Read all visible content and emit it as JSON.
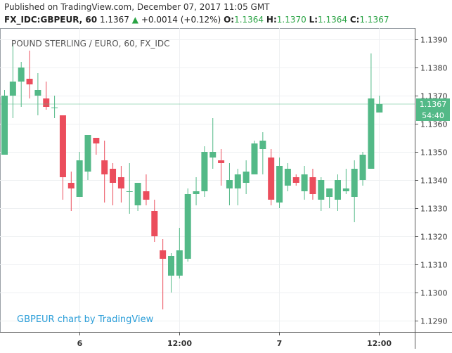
{
  "header": {
    "published": "Published on TradingView.com, December 07, 2017 11:05 GMT",
    "symbol": "FX_IDC:GBPEUR, 60",
    "last": "1.1367",
    "change": "+0.0014 (+0.12%)",
    "o_label": "O:",
    "o_value": "1.1364",
    "h_label": "H:",
    "h_value": "1.1370",
    "l_label": "L:",
    "l_value": "1.1364",
    "c_label": "C:",
    "c_value": "1.1367",
    "change_icon": "triangle-up-icon"
  },
  "chart_data": {
    "type": "candlestick",
    "title": "POUND STERLING / EURO, 60, FX_IDC",
    "watermark": "GBPEUR chart by TradingView",
    "y_ticks": [
      "1.1390",
      "1.1380",
      "1.1370",
      "1.1360",
      "1.1350",
      "1.1340",
      "1.1330",
      "1.1320",
      "1.1310",
      "1.1300",
      "1.1290"
    ],
    "x_ticks": [
      "6",
      "12:00",
      "7",
      "12:00"
    ],
    "ylim": [
      1.1286,
      1.1394
    ],
    "price_label": "1.1367",
    "countdown_label": "54:40",
    "up_color": "#53b987",
    "down_color": "#eb4d5c",
    "candles": [
      {
        "o": 1.1349,
        "h": 1.1372,
        "l": 1.1349,
        "c": 1.137
      },
      {
        "o": 1.137,
        "h": 1.13885,
        "l": 1.1362,
        "c": 1.1375
      },
      {
        "o": 1.1375,
        "h": 1.1382,
        "l": 1.1366,
        "c": 1.138
      },
      {
        "o": 1.1376,
        "h": 1.1386,
        "l": 1.1369,
        "c": 1.1374
      },
      {
        "o": 1.137,
        "h": 1.1378,
        "l": 1.1363,
        "c": 1.1372
      },
      {
        "o": 1.1369,
        "h": 1.1375,
        "l": 1.1365,
        "c": 1.1366
      },
      {
        "o": 1.13658,
        "h": 1.137,
        "l": 1.1362,
        "c": 1.13658
      },
      {
        "o": 1.1363,
        "h": 1.1363,
        "l": 1.1333,
        "c": 1.1341
      },
      {
        "o": 1.1339,
        "h": 1.1343,
        "l": 1.1329,
        "c": 1.1337
      },
      {
        "o": 1.1334,
        "h": 1.135,
        "l": 1.1334,
        "c": 1.1347
      },
      {
        "o": 1.1343,
        "h": 1.1356,
        "l": 1.134,
        "c": 1.1356
      },
      {
        "o": 1.1355,
        "h": 1.1355,
        "l": 1.1349,
        "c": 1.1353
      },
      {
        "o": 1.1347,
        "h": 1.1354,
        "l": 1.1332,
        "c": 1.1342
      },
      {
        "o": 1.1344,
        "h": 1.1346,
        "l": 1.1331,
        "c": 1.1339
      },
      {
        "o": 1.1341,
        "h": 1.1345,
        "l": 1.1332,
        "c": 1.1337
      },
      {
        "o": 1.1336,
        "h": 1.1346,
        "l": 1.1328,
        "c": 1.1336
      },
      {
        "o": 1.1331,
        "h": 1.1338,
        "l": 1.1329,
        "c": 1.1339
      },
      {
        "o": 1.1336,
        "h": 1.1342,
        "l": 1.1331,
        "c": 1.1333
      },
      {
        "o": 1.1329,
        "h": 1.1333,
        "l": 1.1318,
        "c": 1.132
      },
      {
        "o": 1.1315,
        "h": 1.1319,
        "l": 1.1294,
        "c": 1.1312
      },
      {
        "o": 1.1306,
        "h": 1.1314,
        "l": 1.13,
        "c": 1.1313
      },
      {
        "o": 1.1306,
        "h": 1.1323,
        "l": 1.1305,
        "c": 1.1315
      },
      {
        "o": 1.1312,
        "h": 1.1337,
        "l": 1.1311,
        "c": 1.1335
      },
      {
        "o": 1.1335,
        "h": 1.1341,
        "l": 1.1331,
        "c": 1.1336
      },
      {
        "o": 1.1336,
        "h": 1.1352,
        "l": 1.1334,
        "c": 1.135
      },
      {
        "o": 1.1348,
        "h": 1.1362,
        "l": 1.1344,
        "c": 1.135
      },
      {
        "o": 1.1347,
        "h": 1.1351,
        "l": 1.1338,
        "c": 1.1346
      },
      {
        "o": 1.1337,
        "h": 1.1346,
        "l": 1.1331,
        "c": 1.134
      },
      {
        "o": 1.1337,
        "h": 1.1344,
        "l": 1.1331,
        "c": 1.1342
      },
      {
        "o": 1.1339,
        "h": 1.1347,
        "l": 1.1335,
        "c": 1.1343
      },
      {
        "o": 1.1342,
        "h": 1.1354,
        "l": 1.1342,
        "c": 1.1353
      },
      {
        "o": 1.1351,
        "h": 1.1357,
        "l": 1.1342,
        "c": 1.1354
      },
      {
        "o": 1.1348,
        "h": 1.1351,
        "l": 1.1331,
        "c": 1.1333
      },
      {
        "o": 1.1332,
        "h": 1.1348,
        "l": 1.133,
        "c": 1.1345
      },
      {
        "o": 1.1338,
        "h": 1.1346,
        "l": 1.1336,
        "c": 1.1344
      },
      {
        "o": 1.1341,
        "h": 1.1342,
        "l": 1.1338,
        "c": 1.1339
      },
      {
        "o": 1.1336,
        "h": 1.1345,
        "l": 1.1333,
        "c": 1.1342
      },
      {
        "o": 1.1341,
        "h": 1.1344,
        "l": 1.1333,
        "c": 1.1335
      },
      {
        "o": 1.1333,
        "h": 1.1341,
        "l": 1.1329,
        "c": 1.134
      },
      {
        "o": 1.1334,
        "h": 1.1337,
        "l": 1.133,
        "c": 1.1337
      },
      {
        "o": 1.1333,
        "h": 1.1342,
        "l": 1.1329,
        "c": 1.134
      },
      {
        "o": 1.1336,
        "h": 1.1344,
        "l": 1.1335,
        "c": 1.1337
      },
      {
        "o": 1.1334,
        "h": 1.1347,
        "l": 1.1325,
        "c": 1.1344
      },
      {
        "o": 1.134,
        "h": 1.135,
        "l": 1.1338,
        "c": 1.1349
      },
      {
        "o": 1.1344,
        "h": 1.1385,
        "l": 1.1344,
        "c": 1.1369
      },
      {
        "o": 1.1364,
        "h": 1.137,
        "l": 1.1364,
        "c": 1.1367
      }
    ]
  }
}
